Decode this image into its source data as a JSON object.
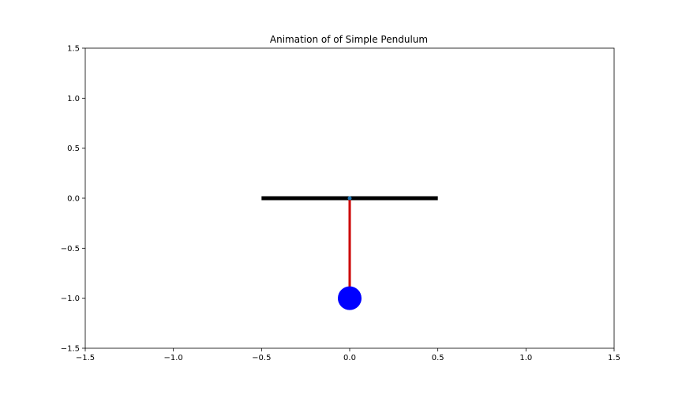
{
  "chart_data": {
    "type": "line",
    "title": "Animation of of Simple Pendulum",
    "xlabel": "",
    "ylabel": "",
    "xlim": [
      -1.5,
      1.5
    ],
    "ylim": [
      -1.5,
      1.5
    ],
    "grid": false,
    "x_ticks": [
      {
        "value": -1.5,
        "label": "−1.5"
      },
      {
        "value": -1.0,
        "label": "−1.0"
      },
      {
        "value": -0.5,
        "label": "−0.5"
      },
      {
        "value": 0.0,
        "label": "0.0"
      },
      {
        "value": 0.5,
        "label": "0.5"
      },
      {
        "value": 1.0,
        "label": "1.0"
      },
      {
        "value": 1.5,
        "label": "1.5"
      }
    ],
    "y_ticks": [
      {
        "value": 1.5,
        "label": "1.5"
      },
      {
        "value": 1.0,
        "label": "1.0"
      },
      {
        "value": 0.5,
        "label": "0.5"
      },
      {
        "value": 0.0,
        "label": "0.0"
      },
      {
        "value": -0.5,
        "label": "−0.5"
      },
      {
        "value": -1.0,
        "label": "−1.0"
      },
      {
        "value": -1.5,
        "label": "−1.5"
      }
    ],
    "ceiling": {
      "x": [
        -0.5,
        0.5
      ],
      "y": [
        0.0,
        0.0
      ],
      "color": "#000000"
    },
    "rod": {
      "x": [
        0.0,
        0.0
      ],
      "y": [
        0.0,
        -1.0
      ],
      "color": "#cc0000"
    },
    "pivot": {
      "x": 0.0,
      "y": 0.0,
      "color": "#1f77b4"
    },
    "bob": {
      "x": 0.0,
      "y": -1.0,
      "color": "#0000ff"
    }
  }
}
